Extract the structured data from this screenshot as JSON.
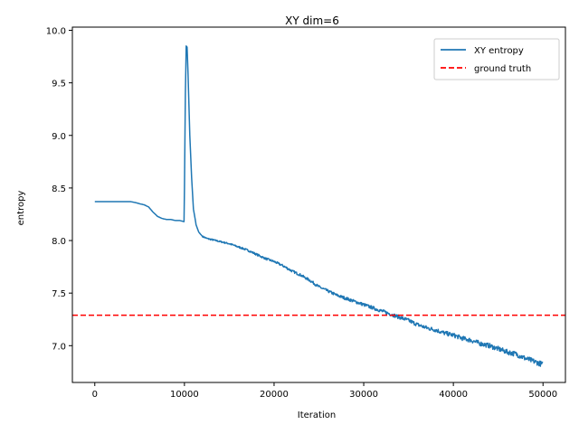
{
  "chart_data": {
    "type": "line",
    "title": "XY dim=6",
    "xlabel": "Iteration",
    "ylabel": "entropy",
    "xlim": [
      -2500,
      52500
    ],
    "ylim": [
      6.65,
      10.03
    ],
    "xticks": [
      0,
      10000,
      20000,
      30000,
      40000,
      50000
    ],
    "xtick_labels": [
      "0",
      "10000",
      "20000",
      "30000",
      "40000",
      "50000"
    ],
    "yticks": [
      7.0,
      7.5,
      8.0,
      8.5,
      9.0,
      9.5,
      10.0
    ],
    "ytick_labels": [
      "7.0",
      "7.5",
      "8.0",
      "8.5",
      "9.0",
      "9.5",
      "10.0"
    ],
    "grid": false,
    "legend_position": "top-right",
    "series": [
      {
        "name": "XY entropy",
        "color": "#1f77b4",
        "style": "solid",
        "x": [
          0,
          1000,
          2000,
          3000,
          4000,
          4600,
          5000,
          5500,
          6000,
          6500,
          7000,
          7500,
          8000,
          8500,
          9000,
          9500,
          9950,
          10000,
          10100,
          10200,
          10300,
          10400,
          10500,
          10600,
          10800,
          11000,
          11300,
          11600,
          12000,
          12500,
          13000,
          14000,
          15000,
          16000,
          17000,
          18000,
          19000,
          20000,
          21000,
          22000,
          23000,
          24000,
          25000,
          26000,
          27000,
          28000,
          29000,
          30000,
          31000,
          32000,
          33000,
          34000,
          35000,
          36000,
          37000,
          38000,
          39000,
          40000,
          41000,
          42000,
          43000,
          44000,
          45000,
          46000,
          47000,
          48000,
          49000,
          50000
        ],
        "y": [
          8.37,
          8.37,
          8.37,
          8.37,
          8.37,
          8.36,
          8.35,
          8.34,
          8.32,
          8.27,
          8.23,
          8.21,
          8.2,
          8.2,
          8.19,
          8.19,
          8.18,
          8.5,
          9.4,
          9.85,
          9.84,
          9.6,
          9.3,
          9.0,
          8.6,
          8.3,
          8.15,
          8.08,
          8.04,
          8.02,
          8.01,
          7.99,
          7.97,
          7.94,
          7.91,
          7.87,
          7.83,
          7.8,
          7.76,
          7.71,
          7.67,
          7.62,
          7.56,
          7.52,
          7.48,
          7.45,
          7.42,
          7.39,
          7.36,
          7.33,
          7.3,
          7.27,
          7.24,
          7.2,
          7.17,
          7.15,
          7.12,
          7.1,
          7.07,
          7.05,
          7.02,
          7.0,
          6.97,
          6.94,
          6.92,
          6.88,
          6.85,
          6.82
        ]
      },
      {
        "name": "ground truth",
        "color": "#ff0000",
        "style": "dashed",
        "y_constant": 7.29
      }
    ]
  }
}
